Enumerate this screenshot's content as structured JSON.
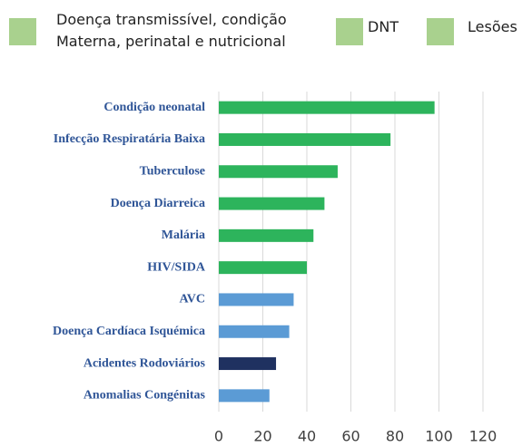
{
  "chart_data": {
    "type": "barh",
    "legend": [
      {
        "label": "Doença transmissível, condição\nMaterna, perinatal e nutricional",
        "color": "#a9d18e"
      },
      {
        "label": "DNT",
        "color": "#a9d18e"
      },
      {
        "label": "Lesões",
        "color": "#a9d18e"
      }
    ],
    "categories": [
      "Condição neonatal",
      "Infecção Respiratária Baixa",
      "Tuberculose",
      "Doença Diarreica",
      "Malária",
      "HIV/SIDA",
      "AVC",
      "Doença Cardíaca Isquémica",
      "Acidentes Rodoviários",
      "Anomalias Congénitas"
    ],
    "values": [
      98,
      78,
      54,
      48,
      43,
      40,
      34,
      32,
      26,
      23
    ],
    "colors": [
      "#2db45c",
      "#2db45c",
      "#2db45c",
      "#2db45c",
      "#2db45c",
      "#2db45c",
      "#5b9bd5",
      "#5b9bd5",
      "#1f3160",
      "#5b9bd5"
    ],
    "xlim": [
      0,
      120
    ],
    "xticks": [
      0,
      20,
      40,
      60,
      80,
      100,
      120
    ],
    "grid": true
  }
}
